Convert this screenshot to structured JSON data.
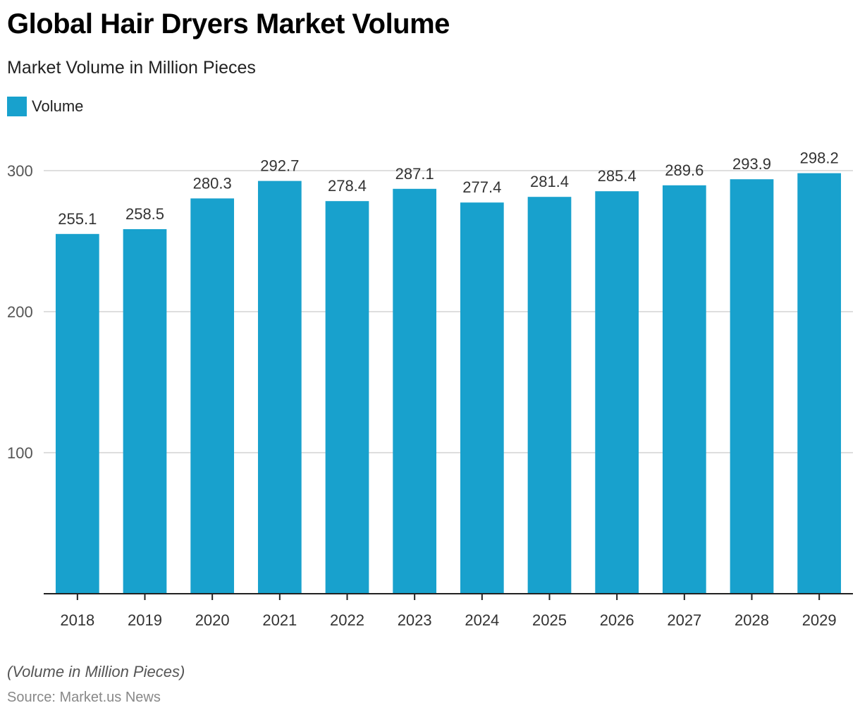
{
  "chart_data": {
    "type": "bar",
    "title": "Global Hair Dryers Market Volume",
    "subtitle": "Market Volume in Million Pieces",
    "categories": [
      "2018",
      "2019",
      "2020",
      "2021",
      "2022",
      "2023",
      "2024",
      "2025",
      "2026",
      "2027",
      "2028",
      "2029"
    ],
    "series": [
      {
        "name": "Volume",
        "color": "#18a1cd",
        "values": [
          255.1,
          258.5,
          280.3,
          292.7,
          278.4,
          287.1,
          277.4,
          281.4,
          285.4,
          289.6,
          293.9,
          298.2
        ]
      }
    ],
    "data_labels": [
      "255.1",
      "258.5",
      "280.3",
      "292.7",
      "278.4",
      "287.1",
      "277.4",
      "281.4",
      "285.4",
      "289.6",
      "293.9",
      "298.2"
    ],
    "xlabel": "",
    "ylabel": "",
    "ylim": [
      0,
      300
    ],
    "yticks": [
      100,
      200,
      300
    ],
    "ytick_labels": [
      "100",
      "200",
      "300"
    ],
    "grid": true,
    "legend": {
      "position": "top-left",
      "entries": [
        "Volume"
      ]
    },
    "note": "(Volume in Million Pieces)",
    "source": "Source: Market.us News"
  }
}
